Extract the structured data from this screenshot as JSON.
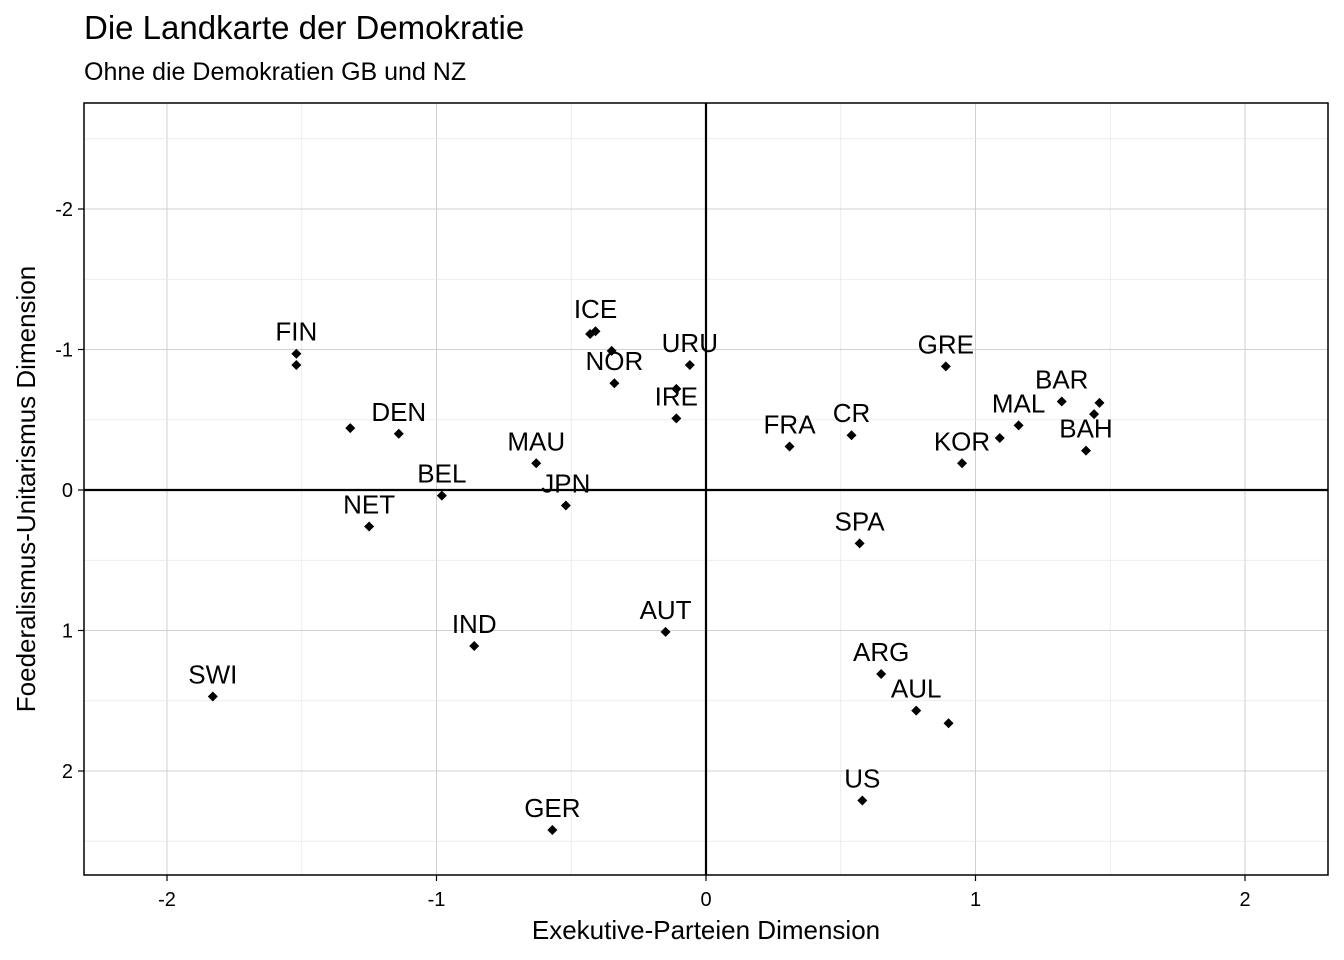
{
  "chart_data": {
    "type": "scatter",
    "title": "Die Landkarte der Demokratie",
    "subtitle": "Ohne die Demokratien GB und NZ",
    "xlabel": "Exekutive-Parteien Dimension",
    "ylabel": "Foederalismus-Unitarismus Dimension",
    "xlim": [
      -2.3,
      2.3
    ],
    "ylim": [
      -2.75,
      2.75
    ],
    "y_reversed": true,
    "x_ticks": [
      "-2",
      "-1",
      "0",
      "1",
      "2"
    ],
    "y_ticks": [
      "-2",
      "-1",
      "0",
      "1",
      "2"
    ],
    "grid": true,
    "reference_lines": [
      0,
      0
    ],
    "points": [
      {
        "x": -1.52,
        "y": -0.97,
        "label": "FIN"
      },
      {
        "x": -1.52,
        "y": -0.89,
        "label": ""
      },
      {
        "x": -1.32,
        "y": -0.44,
        "label": ""
      },
      {
        "x": -1.14,
        "y": -0.4,
        "label": "DEN"
      },
      {
        "x": -0.98,
        "y": 0.04,
        "label": "BEL"
      },
      {
        "x": -1.25,
        "y": 0.26,
        "label": "NET"
      },
      {
        "x": -0.63,
        "y": -0.19,
        "label": "MAU"
      },
      {
        "x": -0.52,
        "y": 0.11,
        "label": "JPN"
      },
      {
        "x": -0.43,
        "y": -1.11,
        "label": ""
      },
      {
        "x": -0.41,
        "y": -1.13,
        "label": "ICE"
      },
      {
        "x": -0.35,
        "y": -0.99,
        "label": ""
      },
      {
        "x": -0.34,
        "y": -0.76,
        "label": "NOR"
      },
      {
        "x": -0.06,
        "y": -0.89,
        "label": "URU"
      },
      {
        "x": -0.11,
        "y": -0.72,
        "label": ""
      },
      {
        "x": -0.11,
        "y": -0.51,
        "label": "IRE"
      },
      {
        "x": -0.86,
        "y": 1.11,
        "label": "IND"
      },
      {
        "x": -0.15,
        "y": 1.01,
        "label": "AUT"
      },
      {
        "x": -1.83,
        "y": 1.47,
        "label": "SWI"
      },
      {
        "x": -0.57,
        "y": 2.42,
        "label": "GER"
      },
      {
        "x": 0.31,
        "y": -0.31,
        "label": "FRA"
      },
      {
        "x": 0.54,
        "y": -0.39,
        "label": "CR"
      },
      {
        "x": 0.89,
        "y": -0.88,
        "label": "GRE"
      },
      {
        "x": 0.95,
        "y": -0.19,
        "label": "KOR"
      },
      {
        "x": 1.09,
        "y": -0.37,
        "label": ""
      },
      {
        "x": 1.16,
        "y": -0.46,
        "label": "MAL"
      },
      {
        "x": 1.32,
        "y": -0.63,
        "label": "BAR"
      },
      {
        "x": 1.44,
        "y": -0.54,
        "label": ""
      },
      {
        "x": 1.46,
        "y": -0.62,
        "label": ""
      },
      {
        "x": 1.41,
        "y": -0.28,
        "label": "BAH"
      },
      {
        "x": 0.57,
        "y": 0.38,
        "label": "SPA"
      },
      {
        "x": 0.65,
        "y": 1.31,
        "label": "ARG"
      },
      {
        "x": 0.78,
        "y": 1.57,
        "label": "AUL"
      },
      {
        "x": 0.9,
        "y": 1.66,
        "label": ""
      },
      {
        "x": 0.58,
        "y": 2.21,
        "label": "US"
      }
    ]
  }
}
